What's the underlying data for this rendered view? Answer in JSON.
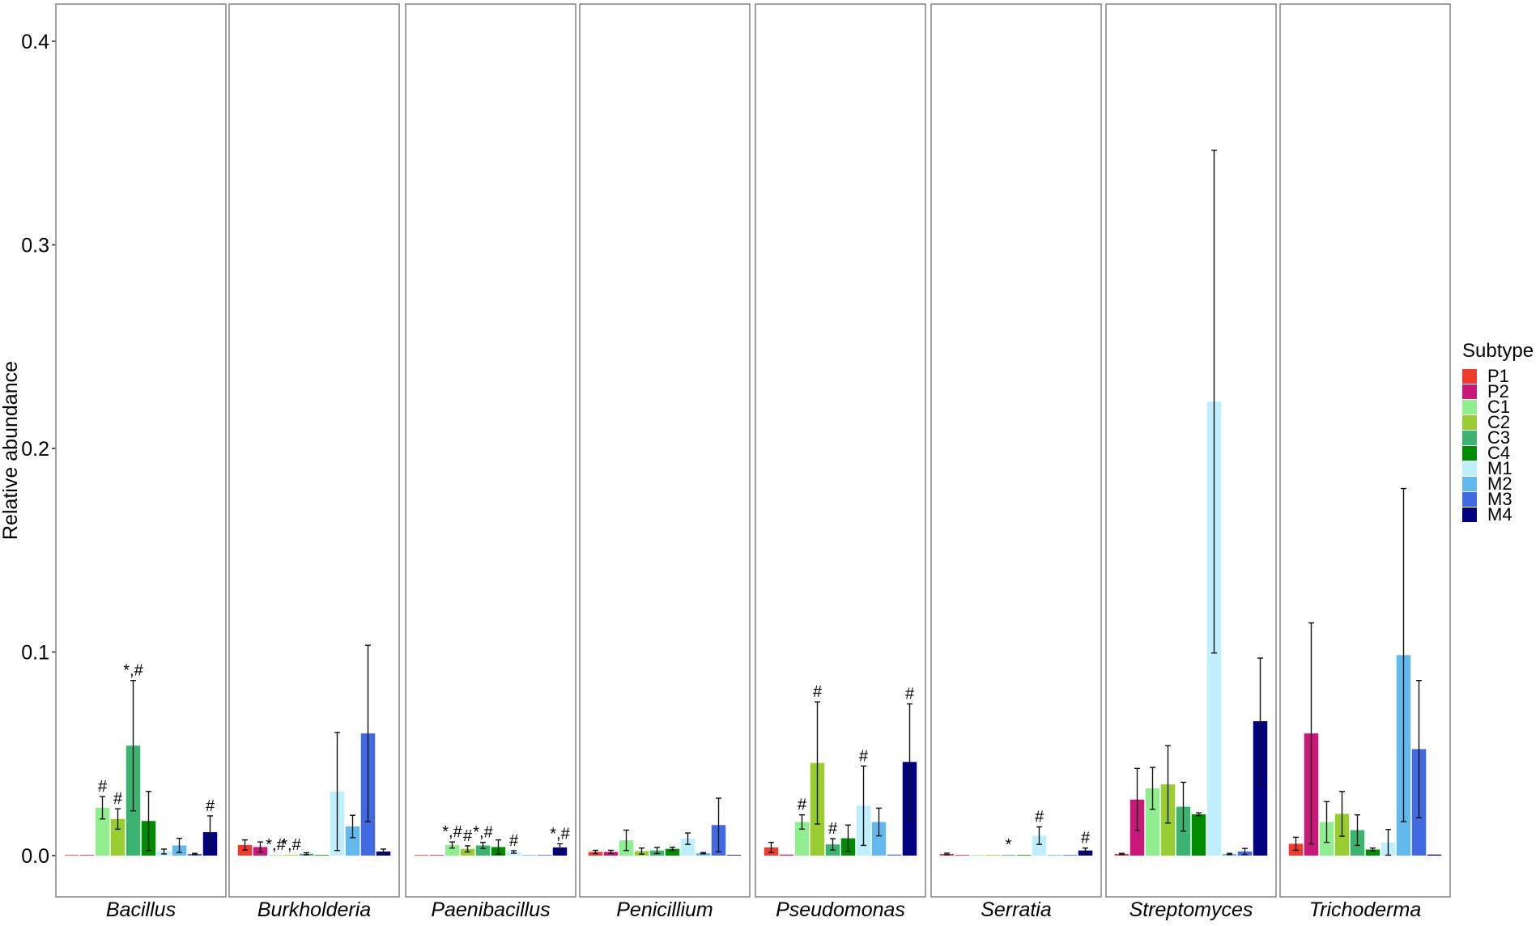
{
  "chart_data": {
    "type": "bar",
    "layout": "faceted",
    "ylabel": "Relative abundance",
    "xlabel": "",
    "ylim": [
      -0.02,
      0.42
    ],
    "yticks": [
      "0.0",
      "0.1",
      "0.2",
      "0.3",
      "0.4"
    ],
    "grid": false,
    "legend": {
      "title": "Subtype",
      "placement": "right"
    },
    "subtypes": [
      {
        "name": "P1",
        "color": "#ef3b2c"
      },
      {
        "name": "P2",
        "color": "#c9187a"
      },
      {
        "name": "C1",
        "color": "#90ee90"
      },
      {
        "name": "C2",
        "color": "#9acd32"
      },
      {
        "name": "C3",
        "color": "#3cb371"
      },
      {
        "name": "C4",
        "color": "#008b00"
      },
      {
        "name": "M1",
        "color": "#bfefff"
      },
      {
        "name": "M2",
        "color": "#63b8ee"
      },
      {
        "name": "M3",
        "color": "#4169e1"
      },
      {
        "name": "M4",
        "color": "#000080"
      }
    ],
    "facets": [
      {
        "name": "Bacillus",
        "values": [
          0.0003,
          0.0003,
          0.0235,
          0.018,
          0.054,
          0.017,
          0.002,
          0.005,
          0.0008,
          0.0115
        ],
        "errors": [
          0.0002,
          0.0002,
          0.0055,
          0.005,
          0.032,
          0.0145,
          0.0012,
          0.0035,
          0.0003,
          0.008
        ],
        "labels": [
          "",
          "",
          "#",
          "#",
          "*,#",
          "",
          "",
          "",
          "",
          "#"
        ]
      },
      {
        "name": "Burkholderia",
        "values": [
          0.0052,
          0.0042,
          0.0002,
          0.0002,
          0.0009,
          0.0003,
          0.0315,
          0.0143,
          0.06,
          0.002
        ],
        "errors": [
          0.0025,
          0.0025,
          0.0001,
          0.0001,
          0.0005,
          0.0001,
          0.029,
          0.0055,
          0.0433,
          0.0012
        ],
        "labels": [
          "",
          "",
          "*,#",
          "*,#",
          "",
          "",
          "",
          "",
          "",
          ""
        ]
      },
      {
        "name": "Paenibacillus",
        "values": [
          0.0002,
          0.0002,
          0.0052,
          0.0033,
          0.005,
          0.0042,
          0.0018,
          0.0002,
          0.0002,
          0.004
        ],
        "errors": [
          0.0001,
          0.0001,
          0.0015,
          0.0015,
          0.0015,
          0.0035,
          0.0006,
          0.0001,
          0.0001,
          0.0018
        ],
        "labels": [
          "",
          "",
          "*,#",
          "#",
          "*,#",
          "",
          "#",
          "",
          "",
          "*,#"
        ]
      },
      {
        "name": "Penicillium",
        "values": [
          0.0018,
          0.0018,
          0.0075,
          0.0022,
          0.0025,
          0.0033,
          0.0083,
          0.0012,
          0.015,
          0.0003
        ],
        "errors": [
          0.0008,
          0.0008,
          0.005,
          0.0015,
          0.0015,
          0.0008,
          0.0028,
          0.0003,
          0.0132,
          0.0001
        ],
        "labels": [
          "",
          "",
          "",
          "",
          "",
          "",
          "",
          "",
          "",
          ""
        ]
      },
      {
        "name": "Pseudomonas",
        "values": [
          0.004,
          0.0005,
          0.0165,
          0.0455,
          0.0055,
          0.0085,
          0.0245,
          0.0165,
          0.0005,
          0.046
        ],
        "errors": [
          0.0025,
          0.0002,
          0.0035,
          0.03,
          0.0028,
          0.0065,
          0.0195,
          0.0068,
          0.0002,
          0.0285
        ],
        "labels": [
          "",
          "",
          "#",
          "#",
          "#",
          "",
          "#",
          "",
          "",
          "#"
        ]
      },
      {
        "name": "Serratia",
        "values": [
          0.0008,
          0.0002,
          0.0002,
          0.0002,
          0.0002,
          0.0002,
          0.0098,
          0.0002,
          0.0002,
          0.0025
        ],
        "errors": [
          0.0004,
          0.0001,
          0.0001,
          0.0001,
          0.0001,
          0.0001,
          0.0043,
          0.0001,
          0.0001,
          0.0012
        ],
        "labels": [
          "",
          "",
          "",
          "",
          "*",
          "",
          "#",
          "",
          "",
          "#"
        ]
      },
      {
        "name": "Streptomyces",
        "values": [
          0.0008,
          0.0275,
          0.033,
          0.035,
          0.024,
          0.0203,
          0.223,
          0.0008,
          0.002,
          0.066
        ],
        "errors": [
          0.0003,
          0.0153,
          0.0103,
          0.019,
          0.012,
          0.0007,
          0.1235,
          0.0003,
          0.0015,
          0.031
        ],
        "labels": [
          "",
          "",
          "",
          "",
          "",
          "",
          "",
          "",
          "",
          ""
        ]
      },
      {
        "name": "Trichoderma",
        "values": [
          0.0058,
          0.06,
          0.0165,
          0.0205,
          0.0125,
          0.003,
          0.0065,
          0.0985,
          0.0523,
          0.0005
        ],
        "errors": [
          0.0032,
          0.0543,
          0.01,
          0.011,
          0.0075,
          0.0007,
          0.0063,
          0.0818,
          0.0337,
          0.0002
        ],
        "labels": [
          "",
          "",
          "",
          "",
          "",
          "",
          "",
          "",
          "",
          ""
        ]
      }
    ]
  }
}
